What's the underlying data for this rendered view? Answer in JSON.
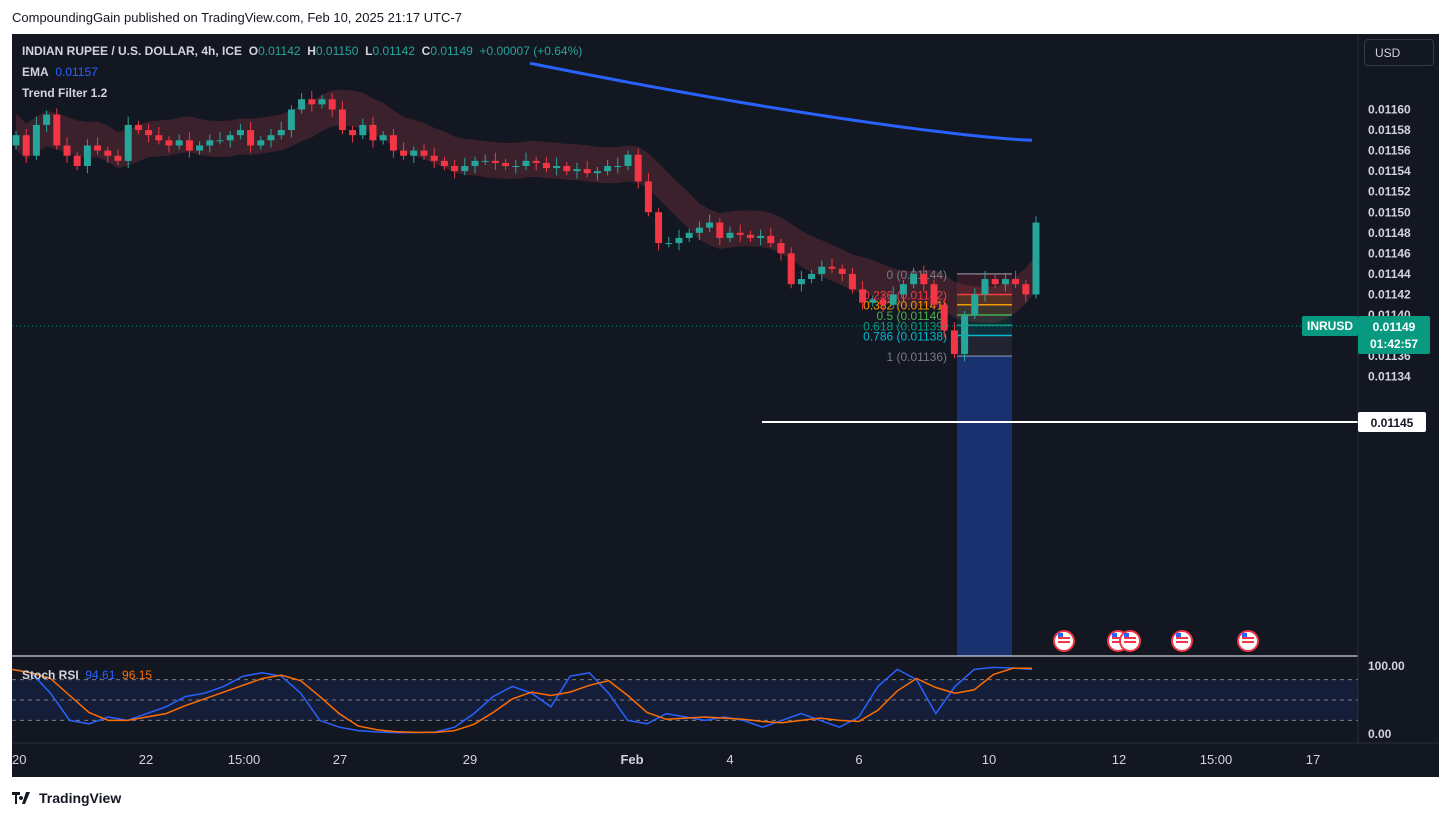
{
  "caption": "CompoundingGain published on TradingView.com, Feb 10, 2025 21:17 UTC-7",
  "brand": "TradingView",
  "currency_selector": "USD",
  "legend": {
    "symbol": "INDIAN RUPEE / U.S. DOLLAR, 4h, ICE",
    "o_label": "O",
    "o": "0.01142",
    "h_label": "H",
    "h": "0.01150",
    "l_label": "L",
    "l": "0.01142",
    "c_label": "C",
    "c": "0.01149",
    "change": "+0.00007 (+0.64%)",
    "ema_label": "EMA",
    "ema_value": "0.01157",
    "trend_filter": "Trend Filter 1.2",
    "stoch_label": "Stoch RSI",
    "stoch_k": "94.61",
    "stoch_d": "96.15"
  },
  "price_badge": {
    "symbol": "INRUSD",
    "price": "0.01149",
    "countdown": "01:42:57"
  },
  "level_badge": "0.01145",
  "colors": {
    "background": "#131722",
    "up": "#26a69a",
    "down": "#f23645",
    "ema": "#2962ff",
    "stoch_k": "#2962ff",
    "stoch_d": "#ff6d00",
    "text": "#d1d4dc",
    "badge": "#089981"
  },
  "chart_data": [
    {
      "type": "candlestick",
      "symbol": "INRUSD",
      "timeframe": "4h",
      "x_ticks": [
        "20",
        "22",
        "15:00",
        "27",
        "29",
        "Feb",
        "4",
        "6",
        "10",
        "12",
        "15:00",
        "17"
      ],
      "y_ticks": [
        "0.01160",
        "0.01158",
        "0.01156",
        "0.01154",
        "0.01152",
        "0.01150",
        "0.01148",
        "0.01146",
        "0.01144",
        "0.01142",
        "0.01140",
        "0.01138",
        "0.01136",
        "0.01134"
      ],
      "ylim": [
        0.011333,
        0.01163
      ],
      "candles_close": [
        0.011575,
        0.011555,
        0.011585,
        0.011595,
        0.011565,
        0.011555,
        0.011545,
        0.011565,
        0.01156,
        0.011555,
        0.01155,
        0.011585,
        0.01158,
        0.011575,
        0.01157,
        0.011565,
        0.01157,
        0.01156,
        0.011565,
        0.01157,
        0.01157,
        0.011575,
        0.01158,
        0.011565,
        0.01157,
        0.011575,
        0.01158,
        0.0116,
        0.01161,
        0.011605,
        0.01161,
        0.0116,
        0.01158,
        0.011575,
        0.011585,
        0.01157,
        0.011575,
        0.01156,
        0.011555,
        0.01156,
        0.011555,
        0.01155,
        0.011545,
        0.01154,
        0.011545,
        0.01155,
        0.01155,
        0.011548,
        0.011545,
        0.011545,
        0.01155,
        0.011548,
        0.011543,
        0.011545,
        0.01154,
        0.011542,
        0.011538,
        0.01154,
        0.011545,
        0.011545,
        0.011556,
        0.01153,
        0.0115,
        0.01147,
        0.01147,
        0.011475,
        0.01148,
        0.011485,
        0.01149,
        0.011475,
        0.01148,
        0.011478,
        0.011475,
        0.011477,
        0.01147,
        0.01146,
        0.01143,
        0.011435,
        0.01144,
        0.011447,
        0.011445,
        0.01144,
        0.011425,
        0.011412,
        0.011415,
        0.01141,
        0.01142,
        0.01143,
        0.01144,
        0.01143,
        0.01141,
        0.011385,
        0.011362,
        0.0114,
        0.01142,
        0.011435,
        0.01143,
        0.011435,
        0.01143,
        0.01142,
        0.01149
      ],
      "ema_line": {
        "label": "EMA",
        "last_value": 0.01157
      },
      "horizontal_line": 0.01145,
      "last_price": 0.01149,
      "fibonacci_retracement": [
        {
          "label": "0 (0.01144)",
          "level": 0.01144
        },
        {
          "label": "0.236 (0.01142)",
          "level": 0.01142
        },
        {
          "label": "0.382 (0.01141)",
          "level": 0.01141
        },
        {
          "label": "0.5 (0.01140)",
          "level": 0.0114
        },
        {
          "label": "0.618 (0.01139)",
          "level": 0.01139
        },
        {
          "label": "0.786 (0.01138)",
          "level": 0.01138
        },
        {
          "label": "1 (0.01136)",
          "level": 0.01136
        }
      ]
    },
    {
      "type": "line",
      "title": "Stoch RSI",
      "y_ticks": [
        "100.00",
        "0.00"
      ],
      "bands": [
        80,
        50,
        20
      ],
      "series": [
        {
          "name": "K",
          "last_value": 94.61
        },
        {
          "name": "D",
          "last_value": 96.15
        }
      ]
    }
  ]
}
